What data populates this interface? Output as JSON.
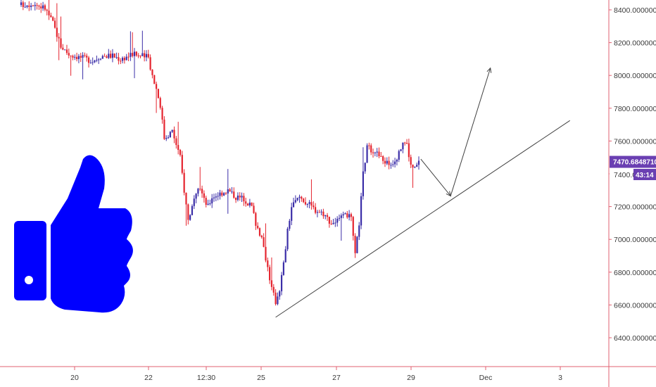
{
  "chart_data": {
    "type": "candlestick",
    "ylim": [
      6300,
      8450
    ],
    "y_ticks": [
      "8400.00000000",
      "8200.00000000",
      "8000.00000000",
      "7800.00000000",
      "7600.00000000",
      "7400.00000000",
      "7200.00000000",
      "7000.00000000",
      "6800.00000000",
      "6600.00000000",
      "6400.00000000"
    ],
    "x_ticks": [
      "20",
      "22",
      "12:30",
      "25",
      "27",
      "29",
      "Dec",
      "3"
    ],
    "last_price": "7470.68487104",
    "last_price_value": 7470.68,
    "countdown": "43:14",
    "countdown_price_prefix": "7400.000",
    "grid": false,
    "colors": {
      "up": "#3b2ea8",
      "down": "#e5252f",
      "badge": "#6a3fb2",
      "axis": "#e06070",
      "line": "#404040",
      "icon": "#0000ff"
    },
    "icon": "thumbs-up-icon",
    "price_path": [
      [
        0,
        8430
      ],
      [
        3,
        8440
      ],
      [
        6,
        8410
      ],
      [
        8,
        8320
      ],
      [
        10,
        8180
      ],
      [
        12,
        8130
      ],
      [
        15,
        8110
      ],
      [
        18,
        8090
      ],
      [
        20,
        8120
      ],
      [
        23,
        8120
      ],
      [
        25,
        8100
      ],
      [
        28,
        8130
      ],
      [
        30,
        8120
      ],
      [
        32,
        8110
      ],
      [
        33,
        8000
      ],
      [
        34,
        7920
      ],
      [
        35,
        7820
      ],
      [
        36,
        7620
      ],
      [
        38,
        7660
      ],
      [
        39,
        7580
      ],
      [
        40,
        7500
      ],
      [
        41,
        7300
      ],
      [
        42,
        7120
      ],
      [
        43,
        7200
      ],
      [
        44,
        7260
      ],
      [
        45,
        7320
      ],
      [
        46,
        7240
      ],
      [
        47,
        7200
      ],
      [
        48,
        7260
      ],
      [
        50,
        7280
      ],
      [
        52,
        7300
      ],
      [
        54,
        7260
      ],
      [
        56,
        7250
      ],
      [
        58,
        7200
      ],
      [
        59,
        7100
      ],
      [
        60,
        7040
      ],
      [
        61,
        6950
      ],
      [
        62,
        6830
      ],
      [
        63,
        6700
      ],
      [
        64,
        6620
      ],
      [
        65,
        6700
      ],
      [
        66,
        6850
      ],
      [
        67,
        7050
      ],
      [
        68,
        7200
      ],
      [
        70,
        7260
      ],
      [
        72,
        7220
      ],
      [
        74,
        7180
      ],
      [
        76,
        7160
      ],
      [
        78,
        7100
      ],
      [
        80,
        7120
      ],
      [
        82,
        7150
      ],
      [
        83,
        7120
      ],
      [
        84,
        6900
      ],
      [
        85,
        7100
      ],
      [
        86,
        7400
      ],
      [
        87,
        7560
      ],
      [
        89,
        7540
      ],
      [
        91,
        7480
      ],
      [
        93,
        7460
      ],
      [
        95,
        7520
      ],
      [
        96,
        7600
      ],
      [
        97,
        7580
      ],
      [
        98,
        7450
      ],
      [
        99,
        7430
      ],
      [
        100,
        7470
      ]
    ],
    "annotations": {
      "trendline": [
        [
          64,
          6525
        ],
        [
          138,
          7725
        ]
      ],
      "projection": [
        [
          100.5,
          7490
        ],
        [
          108,
          7265
        ],
        [
          118,
          8045
        ]
      ]
    }
  }
}
